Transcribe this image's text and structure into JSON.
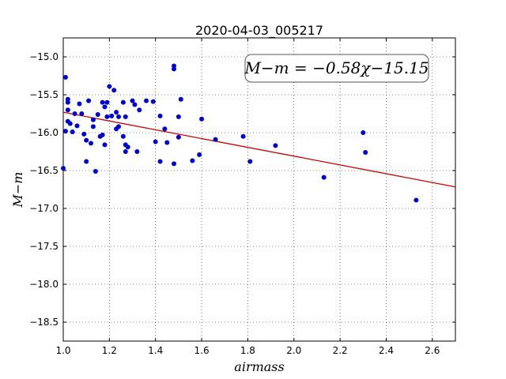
{
  "chart_data": {
    "type": "scatter",
    "title": "2020-04-03_005217",
    "xlabel": "airmass",
    "ylabel": "M−m",
    "xlim": [
      1.0,
      2.7
    ],
    "ylim": [
      -18.75,
      -14.75
    ],
    "y_inverted": true,
    "grid": true,
    "xticks": [
      1.0,
      1.2,
      1.4,
      1.6,
      1.8,
      2.0,
      2.2,
      2.4,
      2.6
    ],
    "xtick_labels": [
      "1.0",
      "1.2",
      "1.4",
      "1.6",
      "1.8",
      "2.0",
      "2.2",
      "2.4",
      "2.6"
    ],
    "yticks": [
      -15.0,
      -15.5,
      -16.0,
      -16.5,
      -17.0,
      -17.5,
      -18.0,
      -18.5
    ],
    "ytick_labels": [
      "−15.0",
      "−15.5",
      "−16.0",
      "−16.5",
      "−17.0",
      "−17.5",
      "−18.0",
      "−18.5"
    ],
    "annotation": "M−m = −0.58χ−15.15",
    "fit": {
      "slope": -0.58,
      "intercept": -15.15,
      "color": "#cc0000"
    },
    "point_color": "#0000cc",
    "points": [
      [
        1.0,
        -16.47
      ],
      [
        1.01,
        -15.27
      ],
      [
        1.01,
        -15.98
      ],
      [
        1.02,
        -15.7
      ],
      [
        1.02,
        -15.56
      ],
      [
        1.02,
        -15.6
      ],
      [
        1.02,
        -15.85
      ],
      [
        1.03,
        -15.88
      ],
      [
        1.04,
        -15.99
      ],
      [
        1.05,
        -15.75
      ],
      [
        1.06,
        -15.91
      ],
      [
        1.07,
        -15.62
      ],
      [
        1.08,
        -15.75
      ],
      [
        1.09,
        -16.02
      ],
      [
        1.1,
        -16.1
      ],
      [
        1.1,
        -16.38
      ],
      [
        1.11,
        -15.58
      ],
      [
        1.12,
        -16.14
      ],
      [
        1.13,
        -15.83
      ],
      [
        1.13,
        -15.92
      ],
      [
        1.14,
        -16.51
      ],
      [
        1.15,
        -15.76
      ],
      [
        1.16,
        -16.05
      ],
      [
        1.17,
        -15.6
      ],
      [
        1.17,
        -16.03
      ],
      [
        1.18,
        -15.66
      ],
      [
        1.18,
        -16.16
      ],
      [
        1.19,
        -15.6
      ],
      [
        1.19,
        -15.79
      ],
      [
        1.2,
        -15.39
      ],
      [
        1.21,
        -15.78
      ],
      [
        1.22,
        -15.44
      ],
      [
        1.23,
        -15.73
      ],
      [
        1.23,
        -15.95
      ],
      [
        1.24,
        -15.92
      ],
      [
        1.24,
        -15.79
      ],
      [
        1.26,
        -15.6
      ],
      [
        1.26,
        -16.05
      ],
      [
        1.27,
        -15.79
      ],
      [
        1.27,
        -16.16
      ],
      [
        1.27,
        -16.25
      ],
      [
        1.28,
        -16.19
      ],
      [
        1.3,
        -15.58
      ],
      [
        1.31,
        -15.63
      ],
      [
        1.32,
        -16.25
      ],
      [
        1.33,
        -15.7
      ],
      [
        1.36,
        -15.58
      ],
      [
        1.39,
        -15.59
      ],
      [
        1.4,
        -16.12
      ],
      [
        1.42,
        -15.78
      ],
      [
        1.42,
        -16.38
      ],
      [
        1.44,
        -15.95
      ],
      [
        1.45,
        -16.13
      ],
      [
        1.48,
        -15.12
      ],
      [
        1.48,
        -15.16
      ],
      [
        1.48,
        -16.41
      ],
      [
        1.5,
        -15.79
      ],
      [
        1.5,
        -16.06
      ],
      [
        1.51,
        -15.56
      ],
      [
        1.56,
        -16.37
      ],
      [
        1.59,
        -16.29
      ],
      [
        1.6,
        -15.82
      ],
      [
        1.66,
        -16.09
      ],
      [
        1.78,
        -16.05
      ],
      [
        1.81,
        -16.38
      ],
      [
        1.92,
        -16.17
      ],
      [
        2.13,
        -16.59
      ],
      [
        2.3,
        -16.0
      ],
      [
        2.31,
        -16.26
      ],
      [
        2.53,
        -16.89
      ]
    ]
  }
}
